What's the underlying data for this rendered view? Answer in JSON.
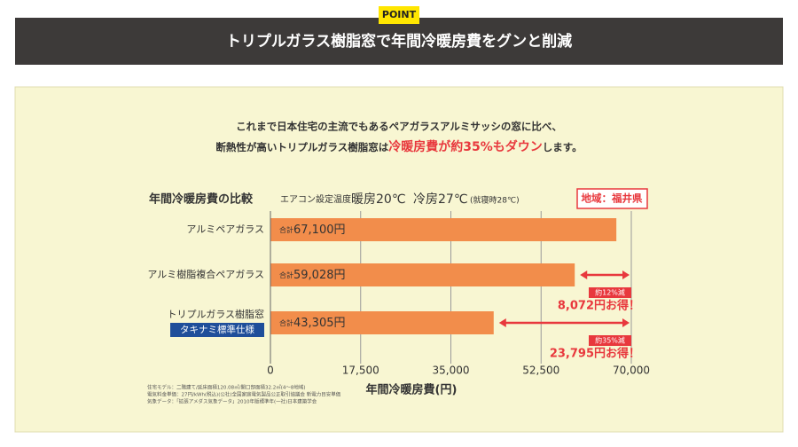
{
  "header": {
    "tag": "POINT",
    "title": "トリプルガラス樹脂窓で年間冷暖房費をグンと削減"
  },
  "intro": {
    "line1": "これまで日本住宅の主流でもあるペアガラスアルミサッシの窓に比べ、",
    "line2_start": "断熱性が高いトリプルガラス樹脂窓は",
    "line2_highlight": "冷暖房費が約35%もダウン",
    "line2_end": "します。"
  },
  "notes": [
    "住宅モデル：二階建て/延床面積120.08㎡/開口部面積32.2㎡(4〜8地域)",
    "電気料金単価：27円/kWh(税込)(公社)全国家庭電気製品公正取引協議会 新電力目安単価",
    "気象データ：「拡張アメダス気象データ」2010年版標準年(一社)日本建築学会"
  ],
  "chart_data": {
    "type": "bar",
    "orientation": "horizontal",
    "title": "年間冷暖房費の比較",
    "conditions": {
      "label": "エアコン設定温度",
      "heating": "暖房20℃",
      "cooling": "冷房27℃",
      "night": "(就寝時28℃)"
    },
    "region": "地域：福井県",
    "categories": [
      "アルミペアガラス",
      "アルミ樹脂複合ペアガラス",
      "トリプルガラス樹脂窓"
    ],
    "category_badge": "タキナミ標準仕様",
    "values": [
      67100,
      59028,
      43305
    ],
    "value_prefix": "合計",
    "value_labels": [
      "67,100円",
      "59,028円",
      "43,305円"
    ],
    "color": "#f28d4b",
    "savings": [
      null,
      {
        "percent": "約12%減",
        "amount": "8,072円お得！"
      },
      {
        "percent": "約35%減",
        "amount": "23,795円お得！"
      }
    ],
    "xlabel": "年間冷暖房費(円)",
    "xlim": [
      0,
      70000
    ],
    "xticks": [
      0,
      {
        "value": 17500,
        "label": "17,500"
      },
      {
        "value": 35000,
        "label": "35,000"
      },
      {
        "value": 52500,
        "label": "52,500"
      },
      {
        "value": 70000,
        "label": "70,000"
      }
    ],
    "grid": true
  }
}
